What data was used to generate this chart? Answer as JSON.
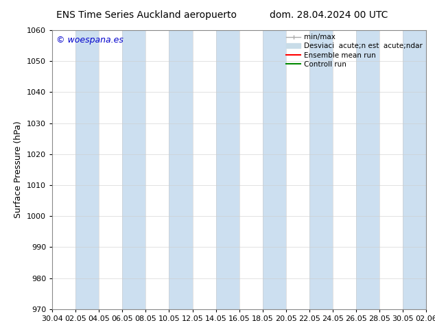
{
  "title_left": "ENS Time Series Auckland aeropuerto",
  "title_right": "dom. 28.04.2024 00 UTC",
  "ylabel": "Surface Pressure (hPa)",
  "ylim": [
    970,
    1060
  ],
  "yticks": [
    970,
    980,
    990,
    1000,
    1010,
    1020,
    1030,
    1040,
    1050,
    1060
  ],
  "xtick_labels": [
    "30.04",
    "02.05",
    "04.05",
    "06.05",
    "08.05",
    "10.05",
    "12.05",
    "14.05",
    "16.05",
    "18.05",
    "20.05",
    "22.05",
    "24.05",
    "26.05",
    "28.05",
    "30.05",
    "02.06"
  ],
  "watermark": "© woespana.es",
  "watermark_color": "#0000cc",
  "bg_color": "#ffffff",
  "band_color": "#ccdff0",
  "legend_label_minmax": "min/max",
  "legend_label_std": "Desviaci  acute;n est  acute;ndar",
  "legend_label_ens": "Ensemble mean run",
  "legend_label_ctrl": "Controll run",
  "legend_minmax_color": "#aaaaaa",
  "legend_std_color": "#c8dce8",
  "legend_ens_color": "#ff0000",
  "legend_ctrl_color": "#008800",
  "font_size_title": 10,
  "font_size_tick": 8,
  "font_size_legend": 7.5,
  "font_size_ylabel": 9,
  "font_size_watermark": 9
}
